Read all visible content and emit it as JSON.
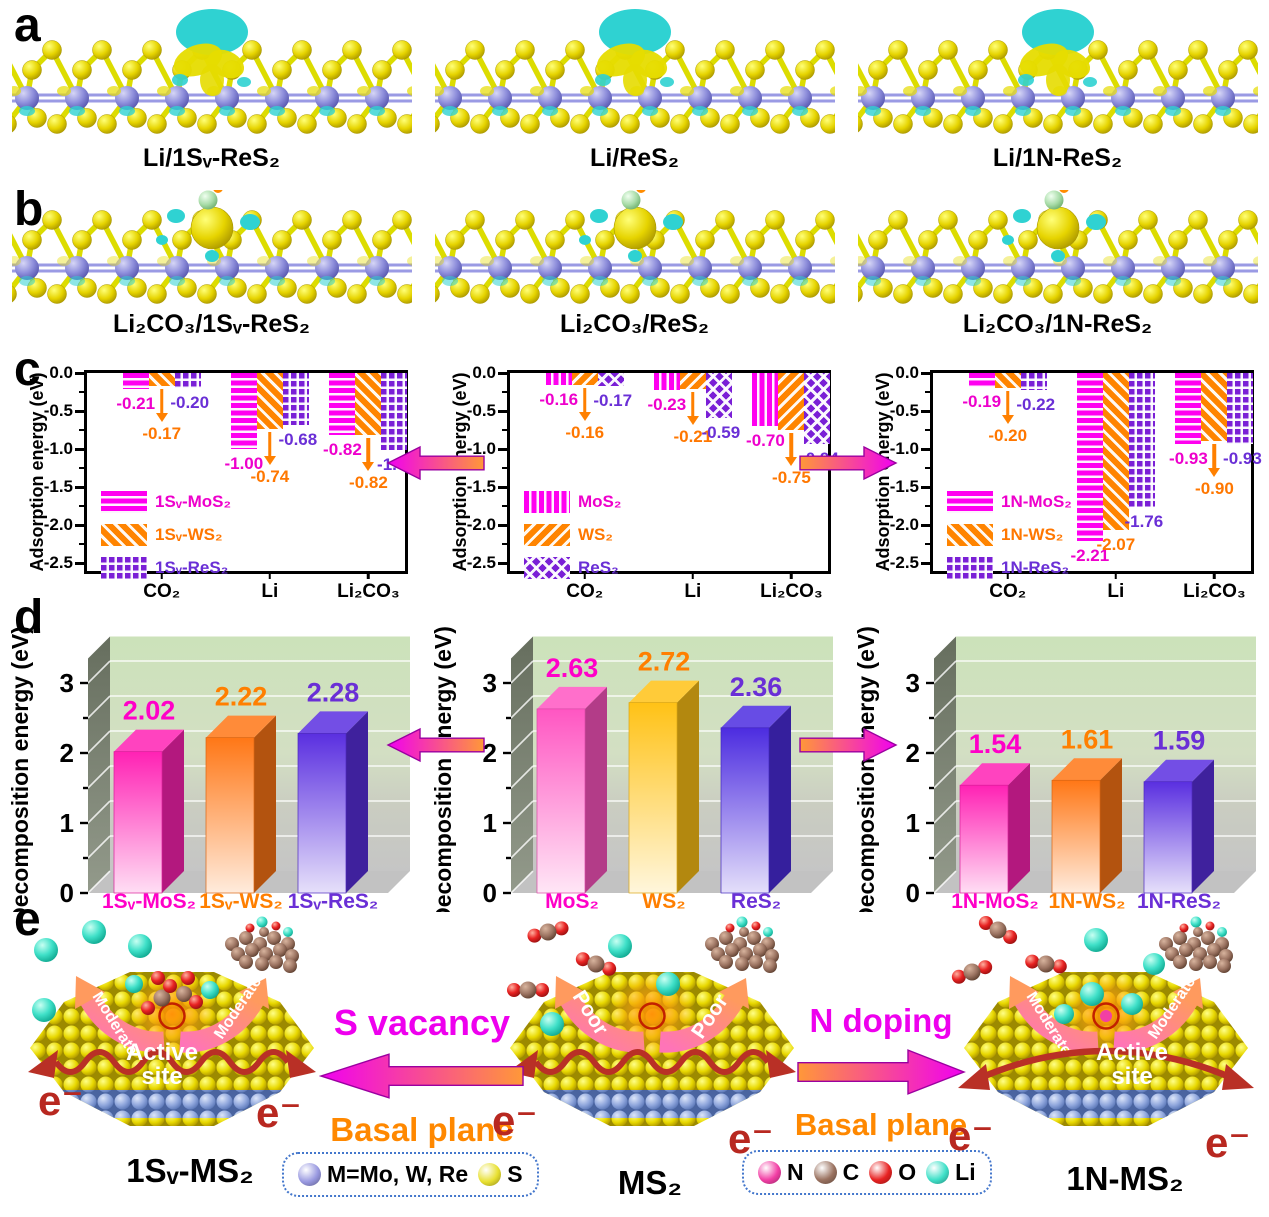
{
  "figure": {
    "background": "#FFFFFF"
  },
  "colors": {
    "magenta_accent": "#EE00D8",
    "orange_accent": "#FF8000",
    "purple_accent": "#6A2FD6",
    "electron_red": "#B82820",
    "band_arrow_pink": "#FF74B8",
    "band_arrow_salmon": "#FF9A5E",
    "legend_border_blue": "#4477CC",
    "sulfur_yellow": "#E8D800",
    "metal_lavender": "#8F8FDC",
    "isosurface_cyan": "#2FD2D2"
  },
  "panels": {
    "a": {
      "letter": "a",
      "labels": [
        "Li/1Sᵥ-ReS₂",
        "Li/ReS₂",
        "Li/1N-ReS₂"
      ]
    },
    "b": {
      "letter": "b",
      "labels": [
        "Li₂CO₃/1Sᵥ-ReS₂",
        "Li₂CO₃/ReS₂",
        "Li₂CO₃/1N-ReS₂"
      ]
    },
    "c": {
      "letter": "c"
    },
    "d": {
      "letter": "d"
    },
    "e": {
      "letter": "e",
      "particles": [
        {
          "name": "1Sᵥ-MS₂",
          "band_label": "Moderate",
          "site_label_line1": "Active",
          "site_label_line2": "site",
          "electron": "e⁻"
        },
        {
          "name": "MS₂",
          "band_label": "Poor",
          "site_label_line1": "",
          "site_label_line2": "",
          "electron": "e⁻"
        },
        {
          "name": "1N-MS₂",
          "band_label": "Moderate",
          "site_label_line1": "Active",
          "site_label_line2": "site",
          "electron": "e⁻"
        }
      ],
      "transitions": [
        {
          "title": "S vacancy",
          "subtitle": "Basal plane",
          "direction": "left"
        },
        {
          "title": "N doping",
          "subtitle": "Basal plane",
          "direction": "right"
        }
      ],
      "legend_left": {
        "items": [
          {
            "label": "M=Mo, W, Re",
            "color": "#9898E0"
          },
          {
            "label": "S",
            "color": "#E8E030"
          }
        ]
      },
      "legend_right": {
        "items": [
          {
            "label": "N",
            "color": "#F23FA5"
          },
          {
            "label": "C",
            "color": "#9A7260"
          },
          {
            "label": "O",
            "color": "#E82222"
          },
          {
            "label": "Li",
            "color": "#3FE0C8"
          }
        ]
      }
    }
  },
  "chart_data": [
    {
      "id": "adsorption-1sv",
      "type": "bar",
      "title": "",
      "ylabel": "Adsorption energy (eV)",
      "ylim": [
        -2.5,
        0
      ],
      "ytick_step": 0.5,
      "grid": false,
      "legend_position": "lower-left",
      "categories": [
        "CO₂",
        "Li",
        "Li₂CO₃"
      ],
      "series": [
        {
          "name": "1Sᵥ-MoS₂",
          "color": "#FF00F0",
          "label_color": "#EE00CC",
          "hatch": "h",
          "values": [
            -0.21,
            -1.0,
            -0.82
          ]
        },
        {
          "name": "1Sᵥ-WS₂",
          "color": "#FF8400",
          "label_color": "#FF7700",
          "hatch": "d1",
          "values": [
            -0.17,
            -0.74,
            -0.82
          ]
        },
        {
          "name": "1Sᵥ-ReS₂",
          "color": "#7A1FD6",
          "label_color": "#6A2FD6",
          "hatch": "grid",
          "values": [
            -0.2,
            -0.68,
            -1.01
          ]
        }
      ]
    },
    {
      "id": "adsorption-pristine",
      "type": "bar",
      "title": "",
      "ylabel": "Adsorption energy (eV)",
      "ylim": [
        -2.5,
        0
      ],
      "ytick_step": 0.5,
      "grid": false,
      "legend_position": "lower-left",
      "categories": [
        "CO₂",
        "Li",
        "Li₂CO₃"
      ],
      "series": [
        {
          "name": "MoS₂",
          "color": "#FF00F0",
          "label_color": "#EE00CC",
          "hatch": "v",
          "values": [
            -0.16,
            -0.23,
            -0.7
          ]
        },
        {
          "name": "WS₂",
          "color": "#FF8400",
          "label_color": "#FF7700",
          "hatch": "d2",
          "values": [
            -0.16,
            -0.21,
            -0.75
          ]
        },
        {
          "name": "ReS₂",
          "color": "#7A1FD6",
          "label_color": "#6A2FD6",
          "hatch": "cross",
          "values": [
            -0.17,
            -0.59,
            -0.94
          ]
        }
      ]
    },
    {
      "id": "adsorption-1n",
      "type": "bar",
      "title": "",
      "ylabel": "Adsorption energy (eV)",
      "ylim": [
        -2.5,
        0
      ],
      "ytick_step": 0.5,
      "grid": false,
      "legend_position": "lower-left",
      "categories": [
        "CO₂",
        "Li",
        "Li₂CO₃"
      ],
      "series": [
        {
          "name": "1N-MoS₂",
          "color": "#FF00F0",
          "label_color": "#EE00CC",
          "hatch": "h",
          "values": [
            -0.19,
            -2.21,
            -0.93
          ]
        },
        {
          "name": "1N-WS₂",
          "color": "#FF8400",
          "label_color": "#FF7700",
          "hatch": "d1",
          "values": [
            -0.2,
            -2.07,
            -0.9
          ]
        },
        {
          "name": "1N-ReS₂",
          "color": "#7A1FD6",
          "label_color": "#6A2FD6",
          "hatch": "grid",
          "values": [
            -0.22,
            -1.76,
            -0.93
          ]
        }
      ]
    },
    {
      "id": "decomposition-1sv",
      "type": "bar3d",
      "title": "",
      "ylabel": "Decomposition energy (eV)",
      "ylim": [
        0,
        3
      ],
      "categories": [
        "1Sᵥ-MoS₂",
        "1Sᵥ-WS₂",
        "1Sᵥ-ReS₂"
      ],
      "values": [
        2.02,
        2.22,
        2.28
      ],
      "bar_colors": [
        "#FF22B4",
        "#FF7716",
        "#5A2FE0"
      ],
      "label_colors": [
        "#FF00C8",
        "#FF7F00",
        "#6A2FD6"
      ],
      "wall_color_top": "#CCE2BA",
      "wall_color_bottom": "#C5C5C5"
    },
    {
      "id": "decomposition-pristine",
      "type": "bar3d",
      "title": "",
      "ylabel": "Decomposition energy (eV)",
      "ylim": [
        0,
        3
      ],
      "categories": [
        "MoS₂",
        "WS₂",
        "ReS₂"
      ],
      "values": [
        2.63,
        2.72,
        2.36
      ],
      "bar_colors": [
        "#FF56C2",
        "#FFC216",
        "#4C2CE0"
      ],
      "label_colors": [
        "#FF00C8",
        "#FF7F00",
        "#6A2FD6"
      ],
      "wall_color_top": "#CCE2BA",
      "wall_color_bottom": "#C5C5C5"
    },
    {
      "id": "decomposition-1n",
      "type": "bar3d",
      "title": "",
      "ylabel": "Decomposition energy (eV)",
      "ylim": [
        0,
        3
      ],
      "categories": [
        "1N-MoS₂",
        "1N-WS₂",
        "1N-ReS₂"
      ],
      "values": [
        1.54,
        1.61,
        1.59
      ],
      "bar_colors": [
        "#FF22B4",
        "#FF7716",
        "#5A2FE0"
      ],
      "label_colors": [
        "#FF00C8",
        "#FF7F00",
        "#6A2FD6"
      ],
      "wall_color_top": "#CCE2BA",
      "wall_color_bottom": "#C5C5C5"
    }
  ]
}
